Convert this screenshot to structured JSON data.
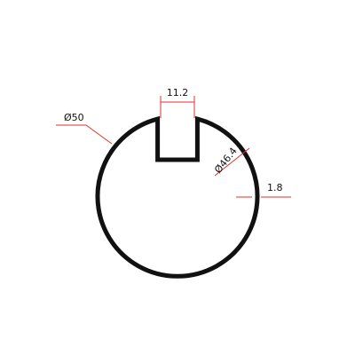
{
  "drawing": {
    "dimensions": {
      "slot_width": "11.2",
      "outer_diameter": "Ø50",
      "inner_diameter": "Ø46.4",
      "wall_thickness": "1.8"
    },
    "colors": {
      "profile": "#111111",
      "dimension_line": "#e0322f",
      "text": "#111111",
      "background": "#ffffff"
    }
  }
}
